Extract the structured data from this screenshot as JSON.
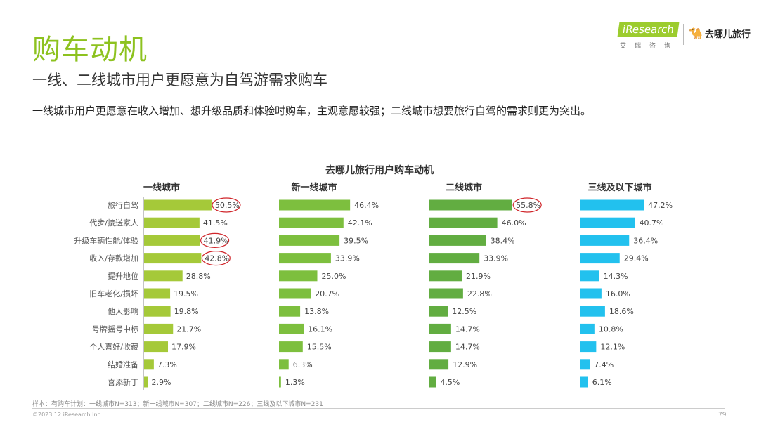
{
  "header": {
    "title": "购车动机",
    "subtitle": "一线、二线城市用户更愿意为自驾游需求购车",
    "description": "一线城市用户更愿意在收入增加、想升级品质和体验时购车，主观意愿较强；二线城市想要旅行自驾的需求则更为突出。"
  },
  "logo": {
    "iresearch": "iResearch",
    "iresearch_cn": "艾瑞咨询",
    "qunar": "去哪儿旅行"
  },
  "chart_data": {
    "type": "bar",
    "orientation": "horizontal",
    "title": "去哪儿旅行用户购车动机",
    "categories": [
      "旅行自驾",
      "代步/接送家人",
      "升级车辆性能/体验",
      "收入/存款增加",
      "提升地位",
      "旧车老化/损坏",
      "他人影响",
      "号牌摇号中标",
      "个人喜好/收藏",
      "结婚准备",
      "喜添新丁"
    ],
    "unit": "%",
    "series": [
      {
        "name": "一线城市",
        "color": "#a5c939",
        "values": [
          50.5,
          41.5,
          41.9,
          42.8,
          28.8,
          19.5,
          19.8,
          21.7,
          17.9,
          7.3,
          2.9
        ],
        "highlighted": [
          0,
          2,
          3
        ]
      },
      {
        "name": "新一线城市",
        "color": "#7dbf3e",
        "values": [
          46.4,
          42.1,
          39.5,
          33.9,
          25.0,
          20.7,
          13.8,
          16.1,
          15.5,
          6.3,
          1.3
        ],
        "highlighted": []
      },
      {
        "name": "二线城市",
        "color": "#62ad41",
        "values": [
          55.8,
          46.0,
          38.4,
          33.9,
          21.9,
          22.8,
          12.5,
          14.7,
          14.7,
          12.9,
          4.5
        ],
        "highlighted": [
          0
        ]
      },
      {
        "name": "三线及以下城市",
        "color": "#22c1ee",
        "values": [
          47.2,
          40.7,
          36.4,
          29.4,
          14.3,
          16.0,
          18.6,
          10.8,
          12.1,
          7.4,
          6.1
        ],
        "highlighted": []
      }
    ],
    "highlight_color": "#d0262b"
  },
  "footer": {
    "note": "样本：有购车计划：一线城市N=313；新一线城市N=307；二线城市N=226；三线及以下城市N=231",
    "copyright": "©2023.12 iResearch Inc.",
    "page": "79"
  }
}
